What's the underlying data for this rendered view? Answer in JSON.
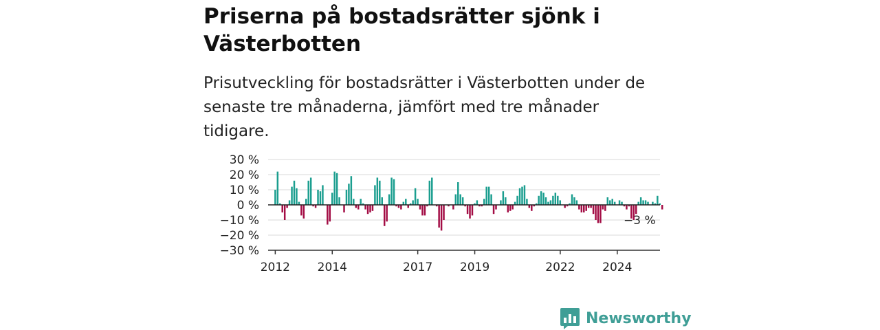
{
  "header": {
    "title": "Priserna på bostadsrätter sjönk i Västerbotten",
    "subtitle": "Prisutveckling för bostadsrätter i Västerbotten under de senaste tre månaderna, jämfört med tre månader tidigare."
  },
  "brand": {
    "name": "Newsworthy",
    "color": "#3f9e96"
  },
  "colors": {
    "positive": "#1b9e8f",
    "negative": "#a30d45",
    "grid": "#d9d9d9",
    "axis": "#333333"
  },
  "chart_data": {
    "type": "bar",
    "ylim": [
      -30,
      30
    ],
    "yticks": [
      30,
      20,
      10,
      0,
      -10,
      -20,
      -30
    ],
    "ytick_labels": [
      "30 %",
      "20 %",
      "10 %",
      "0 %",
      "−10 %",
      "−20 %",
      "−30 %"
    ],
    "xlim": [
      2011.75,
      2025.5
    ],
    "xticks": [
      2012,
      2014,
      2017,
      2019,
      2022,
      2024
    ],
    "xtick_labels": [
      "2012",
      "2014",
      "2017",
      "2019",
      "2022",
      "2024"
    ],
    "grid": true,
    "annotation": "−3 %",
    "x_start": 2012.0,
    "x_step": 0.0833,
    "values": [
      10,
      22,
      1,
      -5,
      -10,
      -2,
      3,
      12,
      16,
      11,
      2,
      -7,
      -9,
      4,
      16,
      18,
      -1,
      -2,
      10,
      9,
      13,
      0,
      -13,
      -11,
      8,
      22,
      21,
      5,
      0,
      -5,
      10,
      14,
      19,
      4,
      -2,
      -3,
      4,
      1,
      -3,
      -6,
      -5,
      -4,
      13,
      18,
      16,
      5,
      -14,
      -11,
      7,
      18,
      17,
      -1,
      -2,
      -3,
      2,
      4,
      -2,
      1,
      3,
      11,
      4,
      -3,
      -7,
      -7,
      -1,
      16,
      18,
      0,
      -1,
      -15,
      -17,
      -10,
      0,
      -1,
      0,
      -3,
      7,
      15,
      7,
      5,
      -1,
      -6,
      -9,
      -7,
      1,
      3,
      -1,
      -1,
      4,
      12,
      12,
      7,
      -6,
      -3,
      0,
      3,
      9,
      5,
      -5,
      -4,
      -3,
      2,
      6,
      11,
      12,
      13,
      4,
      -2,
      -4,
      -1,
      1,
      6,
      9,
      8,
      5,
      2,
      3,
      6,
      8,
      6,
      3,
      0,
      -2,
      -1,
      1,
      7,
      5,
      3,
      -3,
      -5,
      -5,
      -4,
      -2,
      -2,
      -6,
      -10,
      -12,
      -12,
      -3,
      -4,
      5,
      3,
      4,
      2,
      0,
      3,
      2,
      -1,
      -3,
      -1,
      -9,
      -10,
      -6,
      2,
      5,
      3,
      3,
      2,
      0,
      2,
      1,
      6,
      1,
      -3
    ]
  }
}
